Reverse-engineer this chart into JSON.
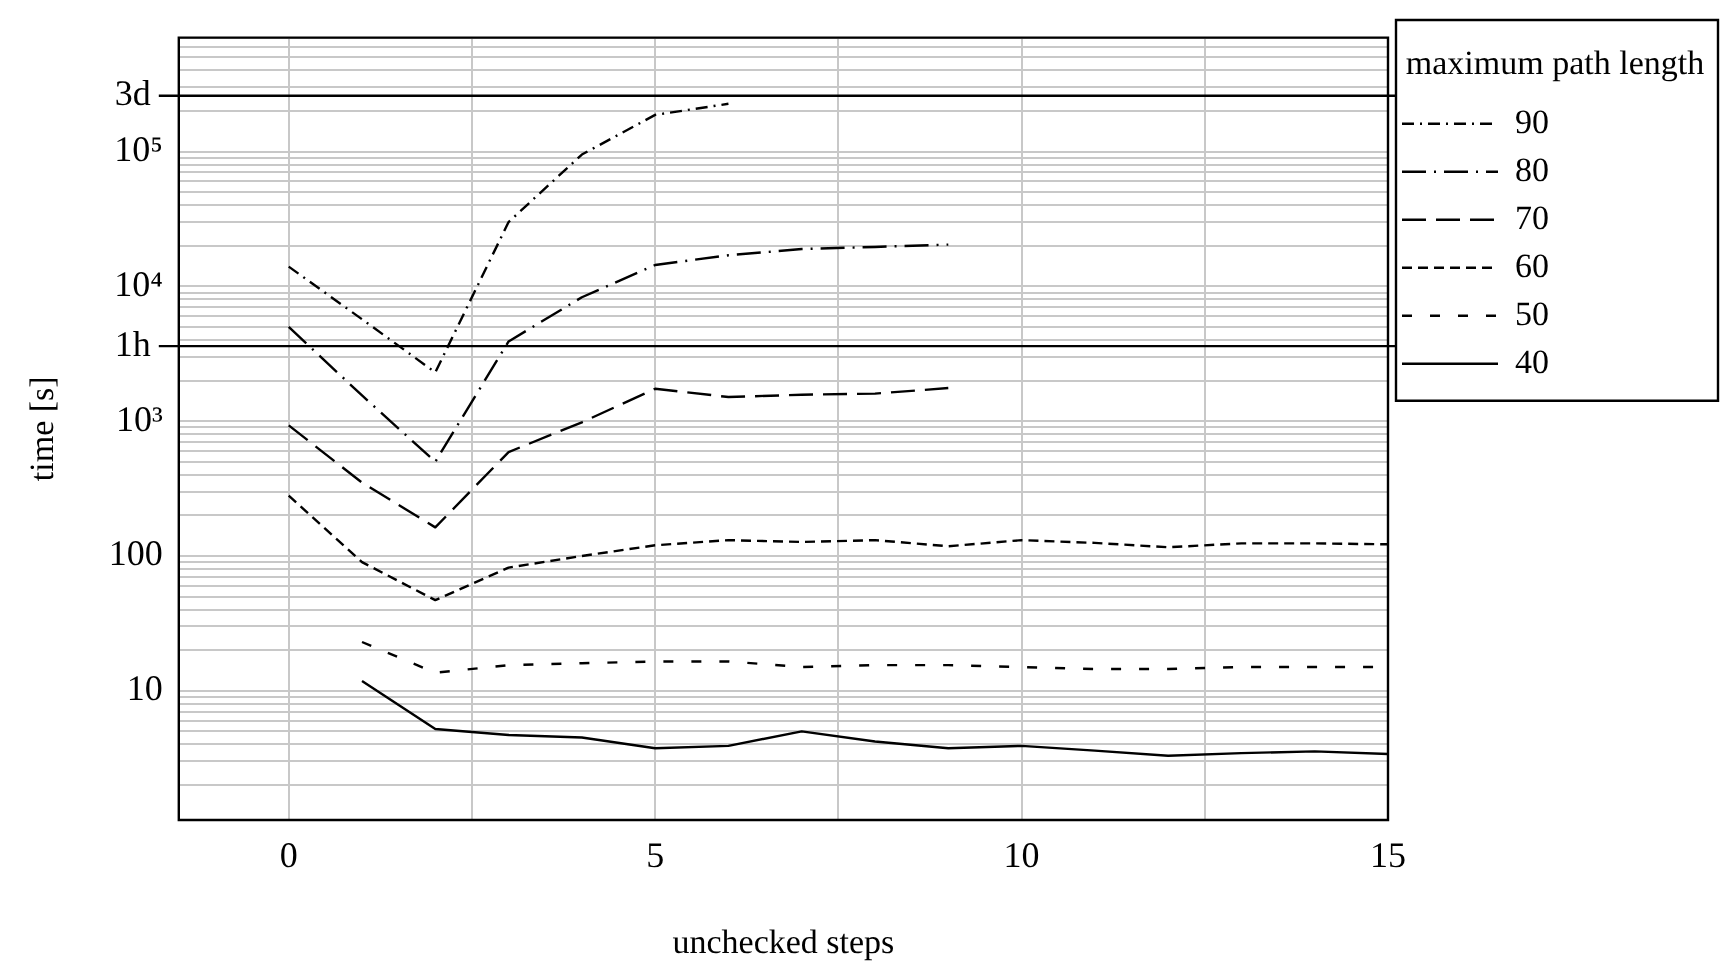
{
  "chart_data": {
    "type": "line",
    "xlabel": "unchecked steps",
    "ylabel": "time [s]",
    "legend_title": "maximum path length",
    "legend": "top right",
    "grid": true,
    "log": "y",
    "x": [
      0,
      1,
      2,
      3,
      4,
      5,
      6,
      7,
      8,
      9,
      10,
      11,
      12,
      13,
      14,
      15
    ],
    "xlim": [
      -1.5,
      15
    ],
    "xticks": [
      0,
      {
        "value": 2.5,
        "label": null
      },
      5,
      {
        "value": 7.5,
        "label": null
      },
      10,
      {
        "value": 12.5,
        "label": null
      },
      15
    ],
    "ylim": [
      1.1,
      700000
    ],
    "yticks": [
      {
        "value": 2,
        "label": null
      },
      {
        "value": 3,
        "label": null
      },
      {
        "value": 4,
        "label": null
      },
      {
        "value": 5,
        "label": null
      },
      {
        "value": 6,
        "label": null
      },
      {
        "value": 7,
        "label": null
      },
      {
        "value": 8,
        "label": null
      },
      {
        "value": 9,
        "label": null
      },
      10,
      {
        "value": 20,
        "label": null
      },
      {
        "value": 30,
        "label": null
      },
      {
        "value": 40,
        "label": null
      },
      {
        "value": 50,
        "label": null
      },
      {
        "value": 60,
        "label": null
      },
      {
        "value": 70,
        "label": null
      },
      {
        "value": 80,
        "label": null
      },
      {
        "value": 90,
        "label": null
      },
      100,
      {
        "value": 200,
        "label": null
      },
      {
        "value": 300,
        "label": null
      },
      {
        "value": 400,
        "label": null
      },
      {
        "value": 500,
        "label": null
      },
      {
        "value": 600,
        "label": null
      },
      {
        "value": 700,
        "label": null
      },
      {
        "value": 800,
        "label": null
      },
      {
        "value": 900,
        "label": null
      },
      {
        "value": 1000,
        "label": "10³"
      },
      {
        "value": 2000,
        "label": null
      },
      {
        "value": 3000,
        "label": null
      },
      {
        "value": 4000,
        "label": null
      },
      {
        "value": 5000,
        "label": null
      },
      {
        "value": 6000,
        "label": null
      },
      {
        "value": 7000,
        "label": null
      },
      {
        "value": 8000,
        "label": null
      },
      {
        "value": 9000,
        "label": null
      },
      {
        "value": 10000,
        "label": "10⁴"
      },
      {
        "value": 20000,
        "label": null
      },
      {
        "value": 30000,
        "label": null
      },
      {
        "value": 40000,
        "label": null
      },
      {
        "value": 50000,
        "label": null
      },
      {
        "value": 60000,
        "label": null
      },
      {
        "value": 70000,
        "label": null
      },
      {
        "value": 80000,
        "label": null
      },
      {
        "value": 90000,
        "label": null
      },
      {
        "value": 100000,
        "label": "10⁵"
      },
      {
        "value": 200000,
        "label": null
      },
      {
        "value": 300000,
        "label": null
      },
      {
        "value": 400000,
        "label": null
      },
      {
        "value": 500000,
        "label": null
      },
      {
        "value": 600000,
        "label": null
      },
      {
        "value": 700000,
        "label": null
      }
    ],
    "ref_lines": [
      {
        "axis": "y",
        "value": 259200,
        "label": "3d",
        "color": "#000000"
      },
      {
        "axis": "y",
        "value": 3600,
        "label": "1h",
        "color": "#000000"
      }
    ],
    "series": [
      {
        "name": "90",
        "color": "#000000",
        "line_style": "dashdot",
        "values": [
          14000,
          5700,
          2300,
          30000,
          95000,
          187000,
          226000,
          null,
          null,
          null,
          null,
          null,
          null,
          null,
          null,
          null
        ]
      },
      {
        "name": "80",
        "color": "#000000",
        "line_style": "longdashdot",
        "values": [
          5000,
          1550,
          500,
          3900,
          8300,
          14400,
          17000,
          18900,
          19600,
          20400,
          null,
          null,
          null,
          null,
          null,
          null
        ]
      },
      {
        "name": "70",
        "color": "#000000",
        "line_style": "longdash",
        "values": [
          930,
          350,
          163,
          590,
          980,
          1740,
          1510,
          1570,
          1600,
          1760,
          null,
          null,
          null,
          null,
          null,
          null
        ]
      },
      {
        "name": "60",
        "color": "#000000",
        "line_style": "dashed",
        "values": [
          280,
          90,
          47,
          82,
          100,
          120,
          131,
          127,
          131,
          118,
          131,
          125,
          116,
          124,
          124,
          122
        ]
      },
      {
        "name": "50",
        "color": "#000000",
        "line_style": "loosely dashed",
        "values": [
          null,
          23,
          13.6,
          15.5,
          16,
          16.5,
          16.5,
          15,
          15.5,
          15.5,
          15,
          14.5,
          14.5,
          15,
          15,
          15
        ]
      },
      {
        "name": "40",
        "color": "#000000",
        "line_style": "solid",
        "values": [
          null,
          11.8,
          5.2,
          4.7,
          4.5,
          3.75,
          3.9,
          5,
          4.2,
          3.75,
          3.9,
          3.6,
          3.3,
          3.45,
          3.55,
          3.4
        ]
      }
    ]
  }
}
